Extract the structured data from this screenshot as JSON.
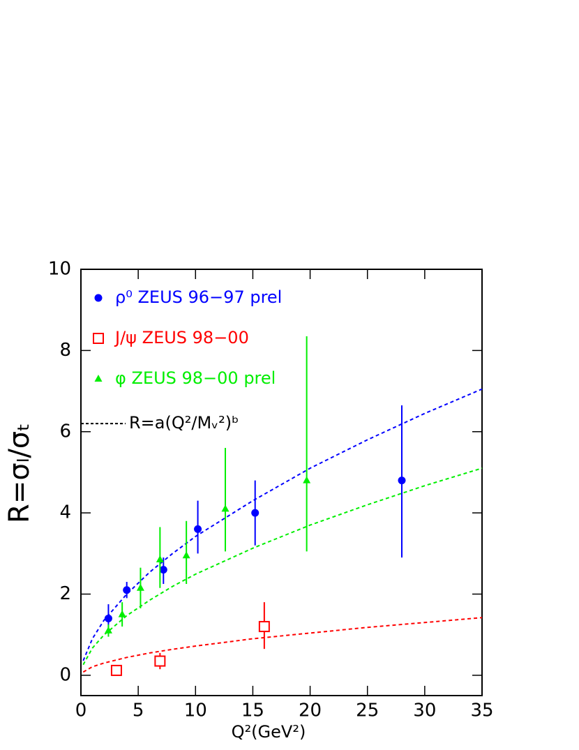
{
  "chart_data": {
    "type": "scatter",
    "x_label": "Q²(GeV²)",
    "y_label": "R=σₗ/σₜ",
    "xlim": [
      0,
      35
    ],
    "ylim": [
      -0.5,
      10
    ],
    "xticks": [
      0,
      5,
      10,
      15,
      20,
      25,
      30,
      35
    ],
    "yticks": [
      0,
      2,
      4,
      6,
      8,
      10
    ],
    "series": [
      {
        "name": "ρ⁰ ZEUS 96−97 prel",
        "color": "#0000ff",
        "marker": "circle",
        "x": [
          2.4,
          4.0,
          7.2,
          10.2,
          15.2,
          28.0
        ],
        "values": [
          1.4,
          2.1,
          2.6,
          3.6,
          4.0,
          4.8
        ],
        "err_minus": [
          0.35,
          0.2,
          0.35,
          0.6,
          0.8,
          1.9
        ],
        "err_plus": [
          0.35,
          0.2,
          0.3,
          0.7,
          0.8,
          1.85
        ]
      },
      {
        "name": "J/ψ ZEUS 98−00",
        "color": "#ff0000",
        "marker": "square",
        "x": [
          3.1,
          6.9,
          16.0
        ],
        "values": [
          0.12,
          0.35,
          1.2
        ],
        "err_minus": [
          0.1,
          0.2,
          0.55
        ],
        "err_plus": [
          0.1,
          0.2,
          0.6
        ]
      },
      {
        "name": "φ ZEUS 98−00 prel",
        "color": "#00ee00",
        "marker": "triangle",
        "x": [
          2.4,
          3.6,
          5.2,
          6.9,
          9.2,
          12.6,
          19.7
        ],
        "values": [
          1.1,
          1.5,
          2.15,
          2.85,
          2.95,
          4.1,
          4.8
        ],
        "err_minus": [
          0.15,
          0.3,
          0.5,
          0.7,
          0.7,
          1.05,
          1.75
        ],
        "err_plus": [
          0.15,
          0.3,
          0.5,
          0.8,
          0.85,
          1.5,
          3.55
        ]
      }
    ],
    "fit": {
      "label": "R=a(Q²/Mᵥ²)ᵇ",
      "color": "#000000",
      "y": 6.2,
      "curves": [
        {
          "color": "#0000ff",
          "x": [
            0.2,
            1,
            2,
            4,
            6,
            8,
            10,
            15,
            20,
            25,
            30,
            35
          ],
          "values": [
            0.36,
            0.9,
            1.35,
            2.0,
            2.54,
            3.0,
            3.42,
            4.3,
            5.1,
            5.8,
            6.45,
            7.05
          ]
        },
        {
          "color": "#ff0000",
          "x": [
            0.2,
            1,
            2,
            4,
            6,
            8,
            10,
            15,
            20,
            25,
            30,
            35
          ],
          "values": [
            0.08,
            0.21,
            0.3,
            0.44,
            0.55,
            0.64,
            0.72,
            0.9,
            1.04,
            1.18,
            1.3,
            1.42
          ]
        },
        {
          "color": "#00ee00",
          "x": [
            0.2,
            1,
            2,
            4,
            6,
            8,
            10,
            15,
            20,
            25,
            30,
            35
          ],
          "values": [
            0.26,
            0.67,
            0.99,
            1.47,
            1.85,
            2.19,
            2.49,
            3.13,
            3.7,
            4.2,
            4.67,
            5.1
          ]
        }
      ]
    }
  }
}
